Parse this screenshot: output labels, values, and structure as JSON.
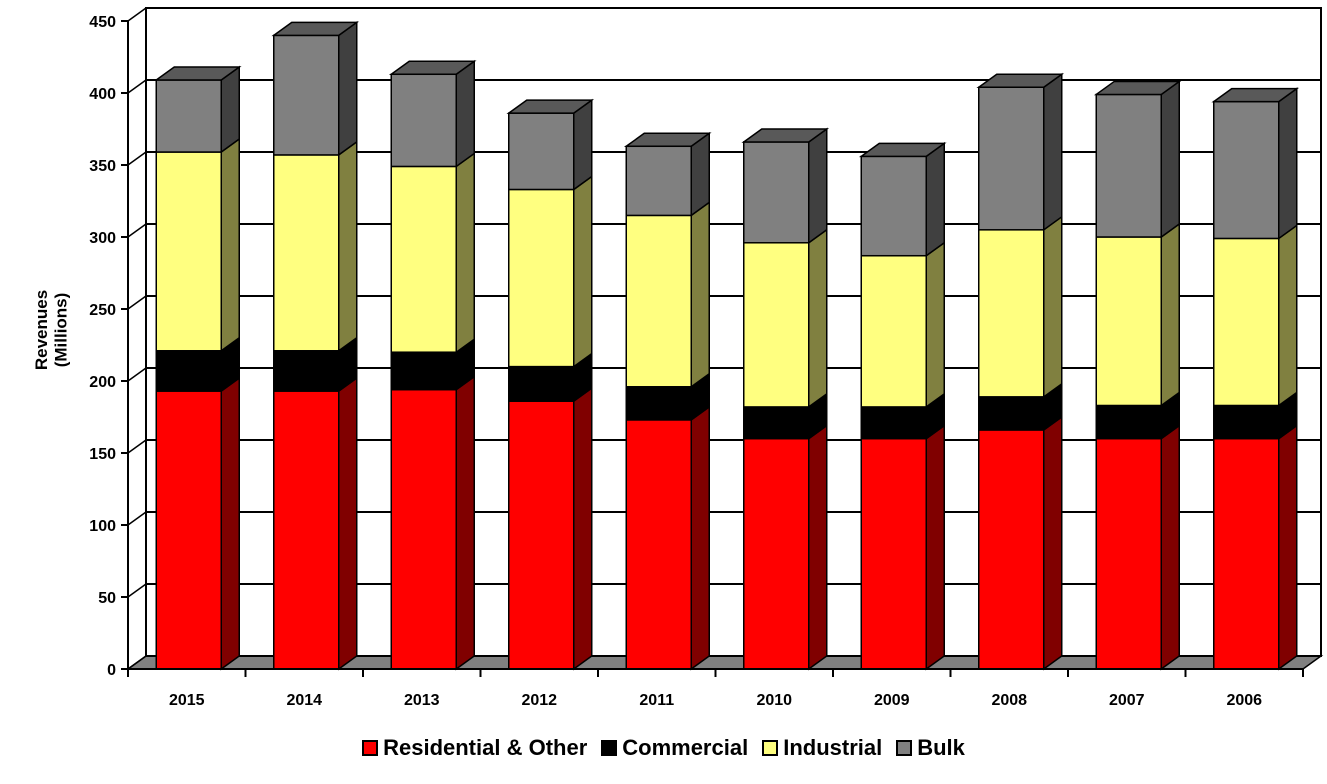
{
  "chart_data": {
    "type": "bar",
    "stacked": true,
    "three_d": true,
    "categories": [
      "2015",
      "2014",
      "2013",
      "2012",
      "2011",
      "2010",
      "2009",
      "2008",
      "2007",
      "2006"
    ],
    "series": [
      {
        "name": "Residential & Other",
        "color": "#FF0000",
        "side_color": "#800000",
        "values": [
          193,
          193,
          194,
          186,
          173,
          160,
          160,
          166,
          160,
          160
        ]
      },
      {
        "name": "Commercial",
        "color": "#000000",
        "side_color": "#000000",
        "values": [
          28,
          28,
          26,
          24,
          23,
          22,
          22,
          23,
          23,
          23
        ]
      },
      {
        "name": "Industrial",
        "color": "#FFFF80",
        "side_color": "#808040",
        "values": [
          138,
          136,
          129,
          123,
          119,
          114,
          105,
          116,
          117,
          116
        ]
      },
      {
        "name": "Bulk",
        "color": "#808080",
        "side_color": "#404040",
        "values": [
          50,
          83,
          64,
          53,
          48,
          70,
          69,
          99,
          99,
          95
        ]
      }
    ],
    "ylabel": "Revenues\n(Millions)",
    "ylim": [
      0,
      450
    ],
    "yticks": [
      0,
      50,
      100,
      150,
      200,
      250,
      300,
      350,
      400,
      450
    ],
    "grid": true,
    "legend_position": "bottom"
  }
}
